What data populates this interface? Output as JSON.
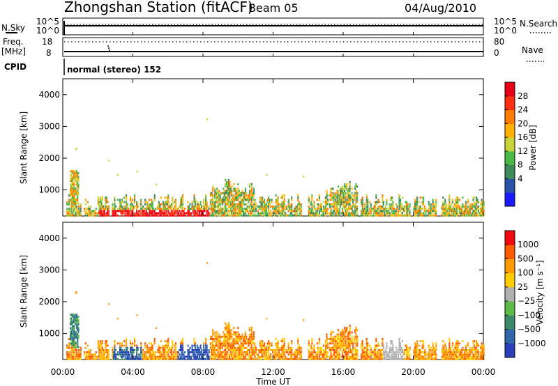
{
  "header": {
    "station": "Zhongshan Station (fitACF)",
    "beam": "Beam 05",
    "date": "04/Aug/2010"
  },
  "panels": {
    "nsky": {
      "label": "N.Sky",
      "ticks": [
        "10^5",
        "10^0"
      ]
    },
    "nsearch": {
      "label": "N.Search",
      "ticks": [
        "10^5",
        "10^0"
      ]
    },
    "freq": {
      "label_line1": "Freq.",
      "label_line2": "[MHz]",
      "ticks": [
        "18",
        "8"
      ]
    },
    "nave": {
      "label": "Nave",
      "ticks": [
        "80",
        "0"
      ]
    },
    "cpid": {
      "label": "CPID",
      "value": "normal (stereo) 152"
    }
  },
  "colors": {
    "power_scale": [
      "#1a1aff",
      "#2a52a8",
      "#3f8a5c",
      "#4cb848",
      "#c8d43a",
      "#ffb000",
      "#ff7a00",
      "#ff3010",
      "#e8001a"
    ],
    "velocity_scale": [
      "#2a3fb8",
      "#2e66a8",
      "#3d8a6a",
      "#5dba48",
      "#b0b0b0",
      "#ffcc00",
      "#ff9a00",
      "#ff5a00",
      "#ee0a10"
    ]
  },
  "chart_data": [
    {
      "type": "heatmap",
      "name": "power",
      "ylabel": "Slant Range [km]",
      "ylim": [
        180,
        4500
      ],
      "yticks": [
        "4000",
        "3000",
        "2000",
        "1000"
      ],
      "colorbar_label": "Power [dB]",
      "colorbar_ticks": [
        "28",
        "24",
        "20",
        "16",
        "12",
        "8",
        "4"
      ],
      "colorbar_range": [
        0,
        32
      ]
    },
    {
      "type": "heatmap",
      "name": "velocity",
      "ylabel": "Slant Range [km]",
      "ylim": [
        180,
        4500
      ],
      "yticks": [
        "4000",
        "3000",
        "2000",
        "1000"
      ],
      "colorbar_label": "Velocity [m s⁻¹]",
      "colorbar_ticks": [
        "1000",
        "500",
        "100",
        "25",
        "−25",
        "−100",
        "−500",
        "−1000"
      ]
    }
  ],
  "xaxis": {
    "label": "Time UT",
    "ticks": [
      "00:00",
      "04:00",
      "08:00",
      "12:00",
      "16:00",
      "20:00",
      "00:00"
    ],
    "range_hours": [
      0,
      24
    ]
  }
}
